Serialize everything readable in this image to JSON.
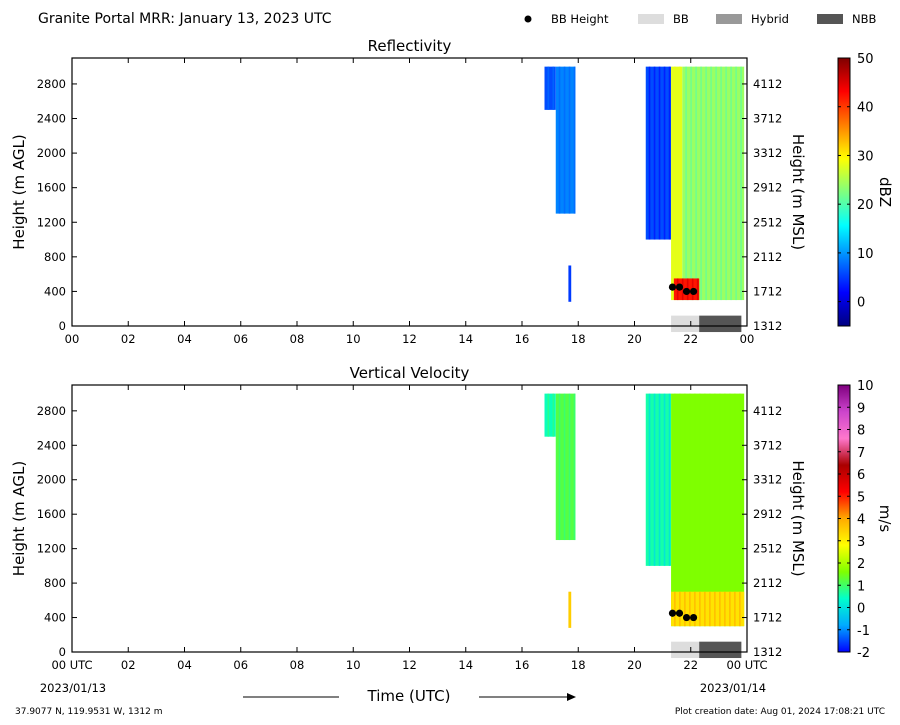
{
  "header": {
    "title": "Granite Portal MRR:  January 13, 2023 UTC",
    "legend": [
      {
        "label": "BB Height",
        "symbol": "dot",
        "color": "#000000"
      },
      {
        "label": "BB",
        "symbol": "box",
        "color": "#dddddd"
      },
      {
        "label": "Hybrid",
        "symbol": "box",
        "color": "#999999"
      },
      {
        "label": "NBB",
        "symbol": "box",
        "color": "#555555"
      }
    ]
  },
  "footer": {
    "location": "37.9077 N, 119.9531 W, 1312 m",
    "creation": "Plot creation date: Aug 01, 2024 17:08:21 UTC",
    "xlabel": "Time (UTC)",
    "start_date": "2023/01/13",
    "end_date": "2023/01/14"
  },
  "chart_data": [
    {
      "type": "heatmap",
      "title": "Reflectivity",
      "xlabel": "",
      "ylabel": "Height (m AGL)",
      "y2label": "Height (m MSL)",
      "x_ticks": [
        "00",
        "02",
        "04",
        "06",
        "08",
        "10",
        "12",
        "14",
        "16",
        "18",
        "20",
        "22",
        "00"
      ],
      "xlim": [
        0,
        24
      ],
      "ylim": [
        0,
        3100
      ],
      "y_ticks": [
        0,
        400,
        800,
        1200,
        1600,
        2000,
        2400,
        2800
      ],
      "y2_ticks": [
        1312,
        1712,
        2112,
        2512,
        2912,
        3312,
        3712,
        4112
      ],
      "colorbar": {
        "label": "dBZ",
        "range": [
          -5,
          50
        ],
        "ticks": [
          0,
          10,
          20,
          30,
          40,
          50
        ],
        "stops": [
          "#00007f",
          "#0000ff",
          "#007fff",
          "#00ffff",
          "#7fff7f",
          "#ffff00",
          "#ff7f00",
          "#ff0000",
          "#7f0000"
        ]
      },
      "echoes": [
        {
          "t_start": 16.8,
          "t_end": 17.2,
          "h_bottom": 2500,
          "h_top": 3000,
          "value": 6
        },
        {
          "t_start": 17.2,
          "t_end": 17.9,
          "h_bottom": 1300,
          "h_top": 3000,
          "value": 9
        },
        {
          "t_start": 17.65,
          "t_end": 17.75,
          "h_bottom": 280,
          "h_top": 700,
          "value": 5
        },
        {
          "t_start": 20.4,
          "t_end": 21.3,
          "h_bottom": 1000,
          "h_top": 3000,
          "value": 6
        },
        {
          "t_start": 21.3,
          "t_end": 21.7,
          "h_bottom": 300,
          "h_top": 3000,
          "value": 28
        },
        {
          "t_start": 21.7,
          "t_end": 23.9,
          "h_bottom": 300,
          "h_top": 3000,
          "value": 24
        },
        {
          "t_start": 21.4,
          "t_end": 22.3,
          "h_bottom": 300,
          "h_top": 550,
          "value": 42
        }
      ],
      "bb_height": [
        {
          "time": 21.35,
          "height": 450
        },
        {
          "time": 21.6,
          "height": 450
        },
        {
          "time": 21.85,
          "height": 400
        },
        {
          "time": 22.1,
          "height": 400
        }
      ],
      "bb_type": [
        {
          "t_start": 21.3,
          "t_end": 22.3,
          "type": "BB"
        },
        {
          "t_start": 22.3,
          "t_end": 23.8,
          "type": "NBB"
        }
      ]
    },
    {
      "type": "heatmap",
      "title": "Vertical Velocity",
      "xlabel": "Time (UTC)",
      "ylabel": "Height (m AGL)",
      "y2label": "Height (m MSL)",
      "x_ticks": [
        "00 UTC",
        "02",
        "04",
        "06",
        "08",
        "10",
        "12",
        "14",
        "16",
        "18",
        "20",
        "22",
        "00 UTC"
      ],
      "xlim": [
        0,
        24
      ],
      "ylim": [
        0,
        3100
      ],
      "y_ticks": [
        0,
        400,
        800,
        1200,
        1600,
        2000,
        2400,
        2800
      ],
      "y2_ticks": [
        1312,
        1712,
        2112,
        2512,
        2912,
        3312,
        3712,
        4112
      ],
      "colorbar": {
        "label": "m/s",
        "range": [
          -2,
          10
        ],
        "ticks": [
          -2,
          -1,
          0,
          1,
          2,
          3,
          4,
          5,
          6,
          7,
          8,
          9,
          10
        ],
        "stops": [
          "#0000ff",
          "#00aaff",
          "#00ffcc",
          "#7fff00",
          "#ffff00",
          "#ffaa00",
          "#ff0000",
          "#aa0000",
          "#ff77cc",
          "#cc44cc",
          "#7f007f"
        ]
      },
      "echoes": [
        {
          "t_start": 16.8,
          "t_end": 17.2,
          "h_bottom": 2500,
          "h_top": 3000,
          "value": 0.5
        },
        {
          "t_start": 17.2,
          "t_end": 17.9,
          "h_bottom": 1300,
          "h_top": 3000,
          "value": 1.2
        },
        {
          "t_start": 17.65,
          "t_end": 17.75,
          "h_bottom": 280,
          "h_top": 700,
          "value": 3.5
        },
        {
          "t_start": 20.4,
          "t_end": 21.3,
          "h_bottom": 1000,
          "h_top": 3000,
          "value": 0.6
        },
        {
          "t_start": 21.3,
          "t_end": 23.9,
          "h_bottom": 300,
          "h_top": 3000,
          "value": 1.6
        },
        {
          "t_start": 21.3,
          "t_end": 23.9,
          "h_bottom": 300,
          "h_top": 700,
          "value": 3.2
        }
      ],
      "bb_height": [
        {
          "time": 21.35,
          "height": 450
        },
        {
          "time": 21.6,
          "height": 450
        },
        {
          "time": 21.85,
          "height": 400
        },
        {
          "time": 22.1,
          "height": 400
        }
      ],
      "bb_type": [
        {
          "t_start": 21.3,
          "t_end": 22.3,
          "type": "BB"
        },
        {
          "t_start": 22.3,
          "t_end": 23.8,
          "type": "NBB"
        }
      ]
    }
  ]
}
